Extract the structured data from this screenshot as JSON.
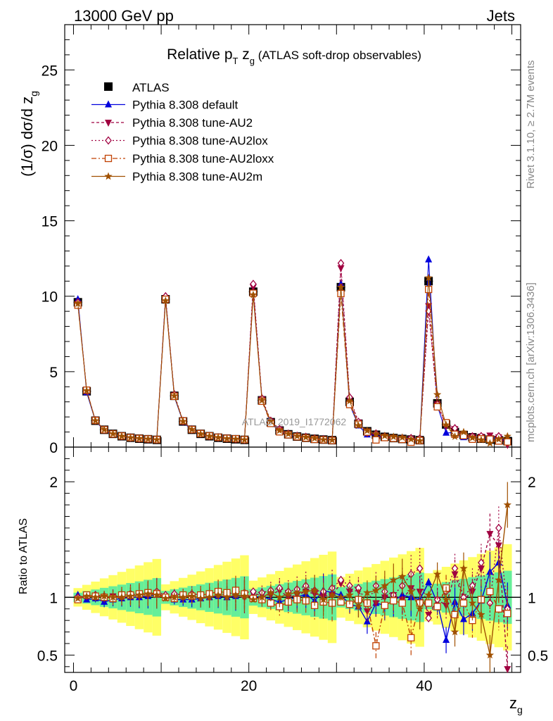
{
  "header": {
    "left": "13000 GeV pp",
    "right": "Jets"
  },
  "side_labels": {
    "rivet": "Rivet 3.1.10, ≥ 2.7M events",
    "mcplots": "mcplots.cern.ch [arXiv:1306.3436]"
  },
  "watermark": "ATLAS_2019_I1772062",
  "chart_data": {
    "type": "line",
    "title": "Relative pT zg (ATLAS soft-drop observables)",
    "title_parts": {
      "a": "Relative p",
      "sub1": "T",
      "b": " z",
      "sub2": "g",
      "c": " (ATLAS soft-drop observables)"
    },
    "xlabel": "z",
    "xlabel_sub": "g",
    "ylabel": "(1/σ) dσ/d z",
    "ylabel_sub": "g",
    "ratio_ylabel": "Ratio to ATLAS",
    "xlim": [
      -1,
      51
    ],
    "ylim": [
      0,
      28
    ],
    "ratio_ylim": [
      0.35,
      2.3
    ],
    "xticks": [
      0,
      20,
      40
    ],
    "yticks": [
      0,
      5,
      10,
      15,
      20,
      25
    ],
    "ratio_yticks": [
      0.5,
      1,
      2
    ],
    "legend_position": "top-left",
    "x": [
      0.5,
      1.5,
      2.5,
      3.5,
      4.5,
      5.5,
      6.5,
      7.5,
      8.5,
      9.5,
      10.5,
      11.5,
      12.5,
      13.5,
      14.5,
      15.5,
      16.5,
      17.5,
      18.5,
      19.5,
      20.5,
      21.5,
      22.5,
      23.5,
      24.5,
      25.5,
      26.5,
      27.5,
      28.5,
      29.5,
      30.5,
      31.5,
      32.5,
      33.5,
      34.5,
      35.5,
      36.5,
      37.5,
      38.5,
      39.5,
      40.5,
      41.5,
      42.5,
      43.5,
      44.5,
      45.5,
      46.5,
      47.5,
      48.5,
      49.5
    ],
    "reference": {
      "name": "ATLAS",
      "color": "#000000",
      "values": [
        9.6,
        3.7,
        1.75,
        1.15,
        0.88,
        0.72,
        0.62,
        0.56,
        0.52,
        0.48,
        9.8,
        3.4,
        1.7,
        1.15,
        0.88,
        0.72,
        0.62,
        0.56,
        0.52,
        0.48,
        10.3,
        3.1,
        1.65,
        1.1,
        0.85,
        0.7,
        0.62,
        0.55,
        0.5,
        0.46,
        10.6,
        3.0,
        1.55,
        1.05,
        0.82,
        0.68,
        0.6,
        0.54,
        0.5,
        0.46,
        11.0,
        2.9,
        1.5,
        1.0,
        0.8,
        0.65,
        0.56,
        0.5,
        0.45,
        0.4
      ],
      "band_stat_pct": 4,
      "band_total_pct": 8
    },
    "series": [
      {
        "name": "Pythia 8.308 default",
        "color": "#0000dd",
        "marker": "triangle-up",
        "dash": "",
        "ratio": [
          1.02,
          0.98,
          0.99,
          0.96,
          0.98,
          0.99,
          1.0,
          1.0,
          1.01,
          1.02,
          1.01,
          0.98,
          0.98,
          0.98,
          0.99,
          1.0,
          1.01,
          1.0,
          1.01,
          1.02,
          1.0,
          1.01,
          0.98,
          0.96,
          0.98,
          1.0,
          1.03,
          0.97,
          1.06,
          1.04,
          1.02,
          0.94,
          0.92,
          0.79,
          0.95,
          0.93,
          0.97,
          1.02,
          1.0,
          0.98,
          1.13,
          0.95,
          0.63,
          0.96,
          0.81,
          0.86,
          0.97,
          1.22,
          1.3,
          0.93
        ]
      },
      {
        "name": "Pythia 8.308 tune-AU2",
        "color": "#a00040",
        "marker": "triangle-down",
        "dash": "4,3",
        "ratio": [
          0.99,
          1.02,
          1.01,
          1.0,
          1.01,
          1.0,
          1.01,
          1.01,
          1.02,
          1.04,
          1.0,
          1.01,
          1.0,
          1.01,
          1.0,
          1.0,
          1.02,
          1.03,
          1.02,
          1.0,
          1.03,
          1.02,
          1.02,
          1.06,
          1.0,
          1.02,
          1.05,
          1.03,
          1.01,
          1.02,
          1.12,
          1.05,
          1.06,
          0.88,
          0.95,
          1.0,
          1.02,
          0.98,
          1.08,
          1.05,
          0.85,
          0.98,
          0.93,
          1.2,
          0.98,
          1.05,
          1.25,
          1.55,
          1.45,
          0.38
        ]
      },
      {
        "name": "Pythia 8.308 tune-AU2lox",
        "color": "#a00040",
        "marker": "diamond",
        "dash": "2,3",
        "ratio": [
          1.0,
          1.01,
          1.02,
          1.01,
          1.0,
          1.02,
          1.03,
          1.02,
          1.03,
          1.05,
          1.02,
          1.03,
          1.02,
          1.03,
          1.02,
          1.03,
          1.05,
          1.04,
          1.03,
          1.04,
          1.05,
          1.04,
          1.06,
          1.08,
          1.05,
          1.07,
          1.1,
          1.06,
          1.05,
          1.08,
          1.15,
          1.1,
          1.08,
          0.95,
          1.1,
          1.05,
          1.02,
          1.1,
          1.2,
          1.25,
          0.82,
          0.98,
          1.05,
          1.25,
          1.0,
          1.1,
          1.3,
          0.95,
          1.6,
          0.9
        ]
      },
      {
        "name": "Pythia 8.308 tune-AU2loxx",
        "color": "#c04000",
        "marker": "square-open",
        "dash": "7,3,2,3",
        "ratio": [
          0.98,
          1.02,
          1.01,
          1.0,
          0.99,
          1.02,
          1.02,
          1.03,
          1.04,
          1.03,
          1.0,
          0.99,
          1.02,
          1.01,
          1.02,
          1.03,
          1.05,
          1.04,
          1.06,
          1.03,
          0.99,
          0.98,
          0.95,
          0.92,
          0.96,
          0.98,
          0.97,
          0.93,
          0.96,
          0.95,
          0.96,
          0.94,
          0.98,
          0.95,
          0.58,
          0.93,
          0.97,
          0.95,
          0.65,
          0.95,
          0.95,
          0.92,
          1.08,
          0.85,
          0.95,
          0.8,
          0.98,
          1.05,
          0.9,
          0.86
        ]
      },
      {
        "name": "Pythia 8.308 tune-AU2m",
        "color": "#a05000",
        "marker": "star",
        "dash": "",
        "ratio": [
          0.99,
          1.01,
          1.0,
          1.01,
          1.0,
          1.0,
          1.01,
          1.02,
          1.03,
          1.02,
          0.99,
          1.0,
          1.0,
          1.01,
          0.99,
          1.0,
          1.02,
          1.0,
          1.02,
          1.01,
          0.98,
          1.0,
          1.04,
          1.0,
          1.03,
          1.04,
          1.05,
          1.06,
          0.98,
          1.02,
          1.0,
          1.02,
          0.92,
          1.04,
          1.06,
          1.1,
          1.15,
          1.18,
          1.05,
          0.9,
          1.02,
          1.2,
          0.98,
          0.7,
          1.25,
          0.95,
          0.85,
          0.5,
          1.15,
          1.8
        ]
      }
    ]
  }
}
